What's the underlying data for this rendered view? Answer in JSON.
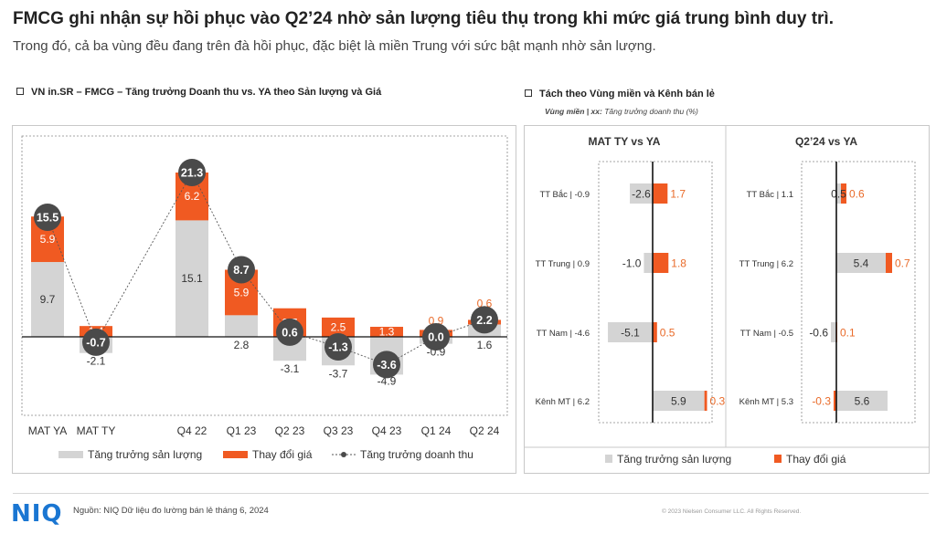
{
  "header": {
    "title": "FMCG ghi nhận sự hồi phục vào Q2’24 nhờ sản lượng tiêu thụ trong khi mức giá trung bình duy trì.",
    "subtitle": "Trong đó, cả ba vùng đều đang trên đà hồi phục, đặc biệt là miền Trung với sức bật mạnh nhờ sản lượng."
  },
  "left_panel": {
    "title": "VN in.SR – FMCG – Tăng trưởng Doanh thu vs. YA theo Sản lượng và Giá"
  },
  "right_panel": {
    "title": "Tách theo Vùng miền và Kênh bán lẻ",
    "note_bold": "Vùng miền | xx:",
    "note_rest": " Tăng trưởng doanh thu (%)"
  },
  "colors": {
    "volume": "#d4d4d4",
    "price": "#f05a22",
    "price_text": "#e96b2a",
    "bubble": "#4a4a4a"
  },
  "chart_data": [
    {
      "type": "bar",
      "stacked": true,
      "categories": [
        "MAT YA",
        "MAT TY",
        "Q4 22",
        "Q1 23",
        "Q2 23",
        "Q3 23",
        "Q4 23",
        "Q1 24",
        "Q2 24"
      ],
      "series": [
        {
          "name": "Tăng trưởng sản lượng",
          "values": [
            9.7,
            -2.1,
            15.1,
            2.8,
            -3.1,
            -3.7,
            -4.9,
            -0.9,
            1.6
          ]
        },
        {
          "name": "Thay đổi giá",
          "values": [
            5.9,
            1.4,
            6.2,
            5.9,
            3.7,
            2.5,
            1.3,
            0.9,
            0.6
          ]
        }
      ],
      "line": {
        "name": "Tăng trưởng doanh thu",
        "values": [
          15.5,
          -0.7,
          21.3,
          8.7,
          0.6,
          -1.3,
          -3.6,
          0.0,
          2.2
        ]
      },
      "value_labels": {
        "volume": [
          "9.7",
          "-2.1",
          "15.1",
          "2.8",
          "-3.1",
          "-3.7",
          "-4.9",
          "-0.9",
          "1.6"
        ],
        "price": [
          "5.9",
          "1.4",
          "6.2",
          "5.9",
          "3.7",
          "2.5",
          "1.3",
          "0.9",
          "0.6"
        ],
        "total": [
          "15.5",
          "-0.7",
          "21.3",
          "8.7",
          "0.6",
          "-1.3",
          "-3.6",
          "0.0",
          "2.2"
        ]
      },
      "legend": [
        "Tăng trưởng sản lượng",
        "Thay đổi giá",
        "Tăng trưởng doanh thu"
      ],
      "legend_position": "bottom",
      "ylim": [
        -7,
        24
      ]
    },
    {
      "type": "bar",
      "orientation": "horizontal",
      "title": "MAT TY vs YA",
      "categories": [
        "TT Bắc | -0.9",
        "TT Trung | 0.9",
        "TT Nam | -4.6",
        "Kênh MT | 6.2"
      ],
      "series": [
        {
          "name": "Tăng trưởng sản lượng",
          "values": [
            -2.6,
            -1.0,
            -5.1,
            5.9
          ]
        },
        {
          "name": "Thay đổi giá",
          "values": [
            1.7,
            1.8,
            0.5,
            0.3
          ]
        }
      ],
      "value_labels": {
        "volume": [
          "-2.6",
          "-1.0",
          "-5.1",
          "5.9"
        ],
        "price": [
          "1.7",
          "1.8",
          "0.5",
          "0.3"
        ]
      },
      "xlim": [
        -7,
        8
      ]
    },
    {
      "type": "bar",
      "orientation": "horizontal",
      "title": "Q2’24 vs YA",
      "categories": [
        "TT Bắc | 1.1",
        "TT Trung | 6.2",
        "TT Nam | -0.5",
        "Kênh MT | 5.3"
      ],
      "series": [
        {
          "name": "Tăng trưởng sản lượng",
          "values": [
            0.5,
            5.4,
            -0.6,
            5.6
          ]
        },
        {
          "name": "Thay đổi giá",
          "values": [
            0.6,
            0.7,
            0.1,
            -0.3
          ]
        }
      ],
      "value_labels": {
        "volume": [
          "0.5",
          "5.4",
          "-0.6",
          "5.6"
        ],
        "price": [
          "0.6",
          "0.7",
          "0.1",
          "-0.3"
        ]
      },
      "legend": [
        "Tăng trưởng sản lượng",
        "Thay đổi giá"
      ],
      "legend_position": "bottom",
      "xlim": [
        -1.6,
        8
      ]
    }
  ],
  "footer": {
    "logo": "NIQ",
    "source": "Nguồn: NIQ Dữ liệu đo lường bán lẻ tháng 6, 2024",
    "copyright": "© 2023 Nielsen Consumer LLC. All Rights Reserved."
  }
}
